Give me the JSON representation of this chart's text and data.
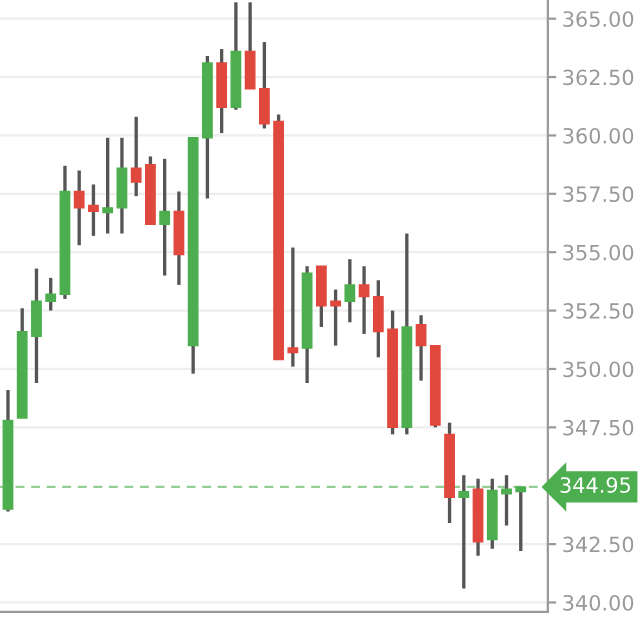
{
  "chart_data": {
    "type": "candlestick",
    "categories": [
      null,
      null,
      null,
      null,
      null,
      null,
      null,
      null,
      null,
      null,
      null,
      null,
      null,
      null,
      null,
      null,
      null,
      null,
      null,
      null,
      null,
      null,
      null,
      null,
      null,
      null,
      null,
      null,
      null,
      null,
      null,
      null,
      null,
      null,
      null,
      null,
      null
    ],
    "ohlc": [
      [
        344.0,
        349.1,
        343.9,
        347.8
      ],
      [
        347.9,
        352.6,
        347.9,
        351.6
      ],
      [
        351.4,
        354.3,
        349.4,
        352.9
      ],
      [
        352.9,
        353.9,
        352.5,
        353.2
      ],
      [
        353.2,
        358.7,
        353.0,
        357.6
      ],
      [
        357.6,
        358.5,
        355.3,
        356.9
      ],
      [
        357.0,
        357.9,
        355.7,
        356.75
      ],
      [
        356.7,
        359.9,
        355.8,
        356.9
      ],
      [
        356.9,
        359.9,
        355.8,
        358.6
      ],
      [
        358.6,
        360.8,
        357.4,
        358.0
      ],
      [
        358.75,
        359.1,
        356.2,
        356.2
      ],
      [
        356.2,
        359.0,
        354.0,
        356.75
      ],
      [
        356.75,
        357.6,
        353.6,
        354.9
      ],
      [
        351.0,
        359.9,
        349.8,
        359.9
      ],
      [
        359.9,
        363.4,
        357.3,
        363.1
      ],
      [
        363.1,
        363.7,
        360.1,
        361.2
      ],
      [
        361.2,
        365.7,
        361.1,
        363.6
      ],
      [
        363.6,
        365.7,
        362.0,
        362.0
      ],
      [
        362.0,
        364.0,
        360.3,
        360.5
      ],
      [
        360.6,
        360.9,
        350.4,
        350.4
      ],
      [
        350.9,
        355.2,
        350.1,
        350.7
      ],
      [
        350.9,
        354.4,
        349.4,
        354.1
      ],
      [
        354.4,
        354.4,
        351.8,
        352.7
      ],
      [
        352.9,
        353.4,
        351.0,
        352.7
      ],
      [
        352.9,
        354.7,
        352.0,
        353.6
      ],
      [
        353.6,
        354.4,
        351.5,
        353.1
      ],
      [
        353.1,
        353.8,
        350.5,
        351.6
      ],
      [
        351.7,
        352.5,
        347.2,
        347.5
      ],
      [
        347.5,
        355.8,
        347.2,
        351.8
      ],
      [
        351.9,
        352.3,
        349.5,
        351.0
      ],
      [
        351.0,
        351.0,
        347.5,
        347.6
      ],
      [
        347.2,
        347.7,
        343.4,
        344.5
      ],
      [
        344.5,
        345.45,
        340.6,
        344.75
      ],
      [
        344.85,
        345.3,
        342.0,
        342.6
      ],
      [
        342.7,
        345.3,
        342.3,
        344.8
      ],
      [
        344.65,
        345.45,
        343.3,
        344.85
      ],
      [
        344.75,
        344.95,
        342.2,
        344.95
      ]
    ],
    "colors": [
      "#4cae4f",
      "#4cae4f",
      "#4cae4f",
      "#4cae4f",
      "#4cae4f",
      "#e0483e",
      "#e0483e",
      "#4cae4f",
      "#4cae4f",
      "#e0483e",
      "#e0483e",
      "#4cae4f",
      "#e0483e",
      "#4cae4f",
      "#4cae4f",
      "#e0483e",
      "#4cae4f",
      "#e0483e",
      "#e0483e",
      "#e0483e",
      "#e0483e",
      "#4cae4f",
      "#e0483e",
      "#e0483e",
      "#4cae4f",
      "#e0483e",
      "#e0483e",
      "#e0483e",
      "#4cae4f",
      "#e0483e",
      "#e0483e",
      "#e0483e",
      "#4cae4f",
      "#e0483e",
      "#4cae4f",
      "#4cae4f",
      "#4cae4f"
    ],
    "ylim": [
      339.6,
      365.8
    ],
    "yticks": [
      {
        "value": 340,
        "label": "340.00"
      },
      {
        "value": 342.5,
        "label": "342.50"
      },
      {
        "value": 347.5,
        "label": "347.50"
      },
      {
        "value": 350,
        "label": "350.00"
      },
      {
        "value": 352.5,
        "label": "352.50"
      },
      {
        "value": 355,
        "label": "355.00"
      },
      {
        "value": 357.5,
        "label": "357.50"
      },
      {
        "value": 360,
        "label": "360.00"
      },
      {
        "value": 362.5,
        "label": "362.50"
      },
      {
        "value": 365,
        "label": "365.00"
      }
    ],
    "ref_lines": [
      {
        "axis": "y",
        "value": 344.95,
        "label": "344.95",
        "color": "#4cae4f",
        "line_style": "dashed"
      }
    ],
    "grid": "y",
    "tick_labels": "y"
  }
}
